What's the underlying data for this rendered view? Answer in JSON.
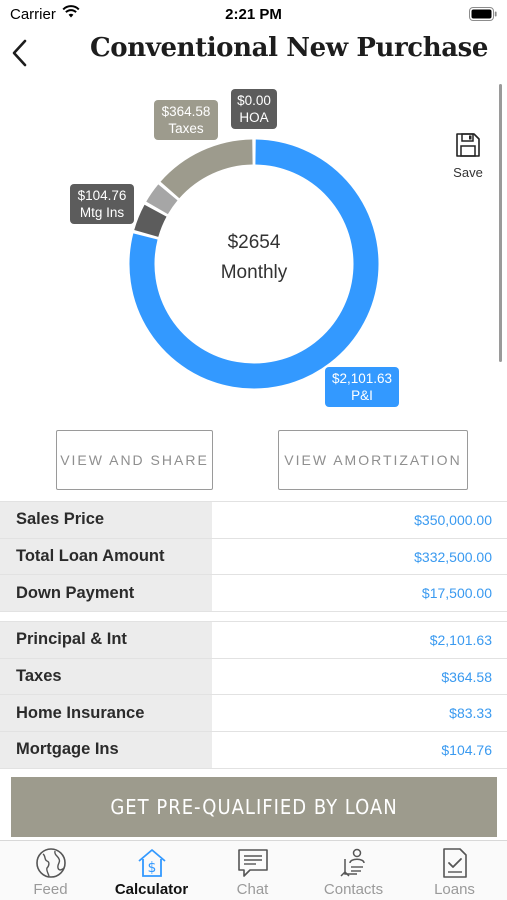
{
  "status_bar": {
    "carrier": "Carrier",
    "time": "2:21 PM"
  },
  "header": {
    "title": "Conventional New Purchase"
  },
  "save": {
    "label": "Save"
  },
  "chart_data": {
    "type": "pie",
    "donut": true,
    "center": {
      "amount": "$2654",
      "label": "Monthly"
    },
    "slices": [
      {
        "name": "P&I",
        "value": 2101.63,
        "label": "$2,101.63",
        "color": "#3399ff"
      },
      {
        "name": "Mtg Ins",
        "value": 104.76,
        "label": "$104.76",
        "color": "#5c5c5c"
      },
      {
        "name": "Home Insurance",
        "value": 83.33,
        "label": "",
        "color": "#a6a6a6"
      },
      {
        "name": "Taxes",
        "value": 364.58,
        "label": "$364.58",
        "color": "#9d9b8d"
      },
      {
        "name": "HOA",
        "value": 0,
        "label": "$0.00",
        "color": "#6a6a6a"
      }
    ]
  },
  "callouts": {
    "hoa": {
      "amount": "$0.00",
      "name": "HOA"
    },
    "taxes": {
      "amount": "$364.58",
      "name": "Taxes"
    },
    "mtg_ins": {
      "amount": "$104.76",
      "name": "Mtg Ins"
    },
    "pi": {
      "amount": "$2,101.63",
      "name": "P&I"
    }
  },
  "buttons": {
    "view_share": "VIEW AND SHARE",
    "view_amortization": "VIEW AMORTIZATION",
    "prequal": "GET PRE-QUALIFIED BY LOAN"
  },
  "loan_summary": [
    {
      "label": "Sales Price",
      "value": "$350,000.00"
    },
    {
      "label": "Total Loan Amount",
      "value": "$332,500.00"
    },
    {
      "label": "Down Payment",
      "value": "$17,500.00"
    }
  ],
  "payment_breakdown": [
    {
      "label": "Principal & Int",
      "value": "$2,101.63"
    },
    {
      "label": "Taxes",
      "value": "$364.58"
    },
    {
      "label": "Home Insurance",
      "value": "$83.33"
    },
    {
      "label": "Mortgage Ins",
      "value": "$104.76"
    }
  ],
  "tabs": [
    {
      "label": "Feed",
      "icon": "globe-icon",
      "active": false
    },
    {
      "label": "Calculator",
      "icon": "calculator-house-icon",
      "active": true
    },
    {
      "label": "Chat",
      "icon": "chat-icon",
      "active": false
    },
    {
      "label": "Contacts",
      "icon": "contacts-icon",
      "active": false
    },
    {
      "label": "Loans",
      "icon": "loans-icon",
      "active": false
    }
  ]
}
